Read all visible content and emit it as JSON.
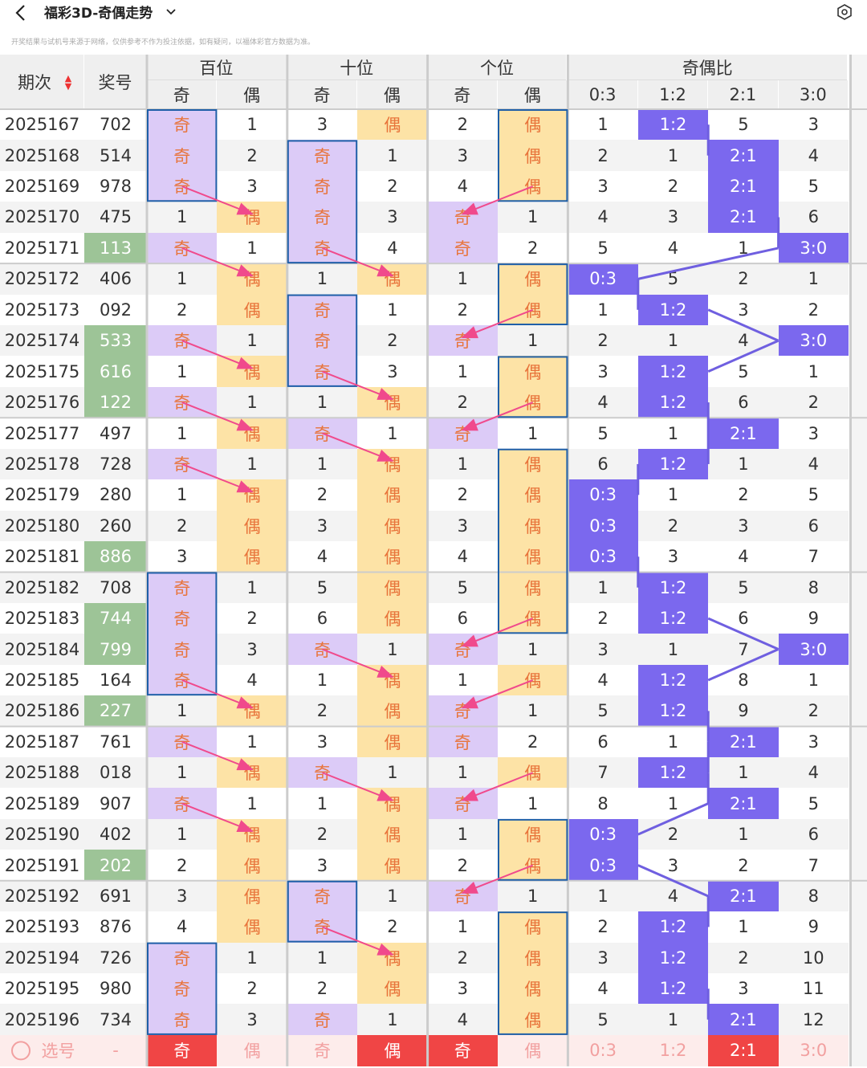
{
  "header": {
    "title": "福彩3D-奇偶走势",
    "notice": "开奖结果与试机号来源于网络，仅供参考不作为投注依据，如有疑问，以福体彩官方数据为准。"
  },
  "table": {
    "columns": [
      "期次",
      "奖号"
    ],
    "groups": [
      "百位",
      "十位",
      "个位",
      "奇偶比"
    ],
    "subheaders": [
      "奇",
      "偶",
      "奇",
      "偶",
      "奇",
      "偶",
      "0:3",
      "1:2",
      "2:1",
      "3:0"
    ],
    "rows": [
      [
        2025167,
        "702",
        "奇",
        1,
        3,
        "偶",
        2,
        "偶",
        1,
        "1:2",
        5,
        3
      ],
      [
        2025168,
        "514",
        "奇",
        2,
        "奇",
        1,
        3,
        "偶",
        2,
        1,
        "2:1",
        4
      ],
      [
        2025169,
        "978",
        "奇",
        3,
        "奇",
        2,
        4,
        "偶",
        3,
        2,
        "2:1",
        5
      ],
      [
        2025170,
        "475",
        1,
        "偶",
        "奇",
        3,
        "奇",
        1,
        4,
        3,
        "2:1",
        6
      ],
      [
        2025171,
        "113",
        "奇",
        1,
        "奇",
        4,
        "奇",
        2,
        5,
        4,
        1,
        "3:0"
      ],
      [
        2025172,
        "406",
        1,
        "偶",
        1,
        "偶",
        1,
        "偶",
        "0:3",
        5,
        2,
        1
      ],
      [
        2025173,
        "092",
        2,
        "偶",
        "奇",
        1,
        2,
        "偶",
        1,
        "1:2",
        3,
        2
      ],
      [
        2025174,
        "533",
        "奇",
        1,
        "奇",
        2,
        "奇",
        1,
        2,
        1,
        4,
        "3:0"
      ],
      [
        2025175,
        "616",
        1,
        "偶",
        "奇",
        3,
        1,
        "偶",
        3,
        "1:2",
        5,
        1
      ],
      [
        2025176,
        "122",
        "奇",
        1,
        1,
        "偶",
        2,
        "偶",
        4,
        "1:2",
        6,
        2
      ],
      [
        2025177,
        "497",
        1,
        "偶",
        "奇",
        1,
        "奇",
        1,
        5,
        1,
        "2:1",
        3
      ],
      [
        2025178,
        "728",
        "奇",
        1,
        1,
        "偶",
        1,
        "偶",
        6,
        "1:2",
        1,
        4
      ],
      [
        2025179,
        "280",
        1,
        "偶",
        2,
        "偶",
        2,
        "偶",
        "0:3",
        1,
        2,
        5
      ],
      [
        2025180,
        "260",
        2,
        "偶",
        3,
        "偶",
        3,
        "偶",
        "0:3",
        2,
        3,
        6
      ],
      [
        2025181,
        "886",
        3,
        "偶",
        4,
        "偶",
        4,
        "偶",
        "0:3",
        3,
        4,
        7
      ],
      [
        2025182,
        "708",
        "奇",
        1,
        5,
        "偶",
        5,
        "偶",
        1,
        "1:2",
        5,
        8
      ],
      [
        2025183,
        "744",
        "奇",
        2,
        6,
        "偶",
        6,
        "偶",
        2,
        "1:2",
        6,
        9
      ],
      [
        2025184,
        "799",
        "奇",
        3,
        "奇",
        1,
        "奇",
        1,
        3,
        1,
        7,
        "3:0"
      ],
      [
        2025185,
        "164",
        "奇",
        4,
        1,
        "偶",
        1,
        "偶",
        4,
        "1:2",
        8,
        1
      ],
      [
        2025186,
        "227",
        1,
        "偶",
        2,
        "偶",
        "奇",
        1,
        5,
        "1:2",
        9,
        2
      ],
      [
        2025187,
        "761",
        "奇",
        1,
        3,
        "偶",
        "奇",
        2,
        6,
        1,
        "2:1",
        3
      ],
      [
        2025188,
        "018",
        1,
        "偶",
        "奇",
        1,
        1,
        "偶",
        7,
        "1:2",
        1,
        4
      ],
      [
        2025189,
        "907",
        "奇",
        1,
        1,
        "偶",
        "奇",
        1,
        8,
        1,
        "2:1",
        5
      ],
      [
        2025190,
        "402",
        1,
        "偶",
        2,
        "偶",
        1,
        "偶",
        "0:3",
        2,
        1,
        6
      ],
      [
        2025191,
        "202",
        2,
        "偶",
        3,
        "偶",
        2,
        "偶",
        "0:3",
        3,
        2,
        7
      ],
      [
        2025192,
        "691",
        3,
        "偶",
        "奇",
        1,
        "奇",
        1,
        1,
        4,
        "2:1",
        8
      ],
      [
        2025193,
        "876",
        4,
        "偶",
        "奇",
        2,
        1,
        "偶",
        2,
        "1:2",
        1,
        9
      ],
      [
        2025194,
        "726",
        "奇",
        1,
        1,
        "偶",
        2,
        "偶",
        3,
        "1:2",
        2,
        10
      ],
      [
        2025195,
        "980",
        "奇",
        2,
        2,
        "偶",
        3,
        "偶",
        4,
        "1:2",
        3,
        11
      ],
      [
        2025196,
        "734",
        "奇",
        3,
        "奇",
        1,
        4,
        "偶",
        5,
        1,
        "2:1",
        12
      ]
    ],
    "footer": [
      "选号",
      "-",
      "奇",
      "偶",
      "奇",
      "偶",
      "奇",
      "偶",
      "0:3",
      "1:2",
      "2:1",
      "3:0"
    ],
    "footer_selected": [
      2,
      5,
      6,
      10
    ]
  }
}
